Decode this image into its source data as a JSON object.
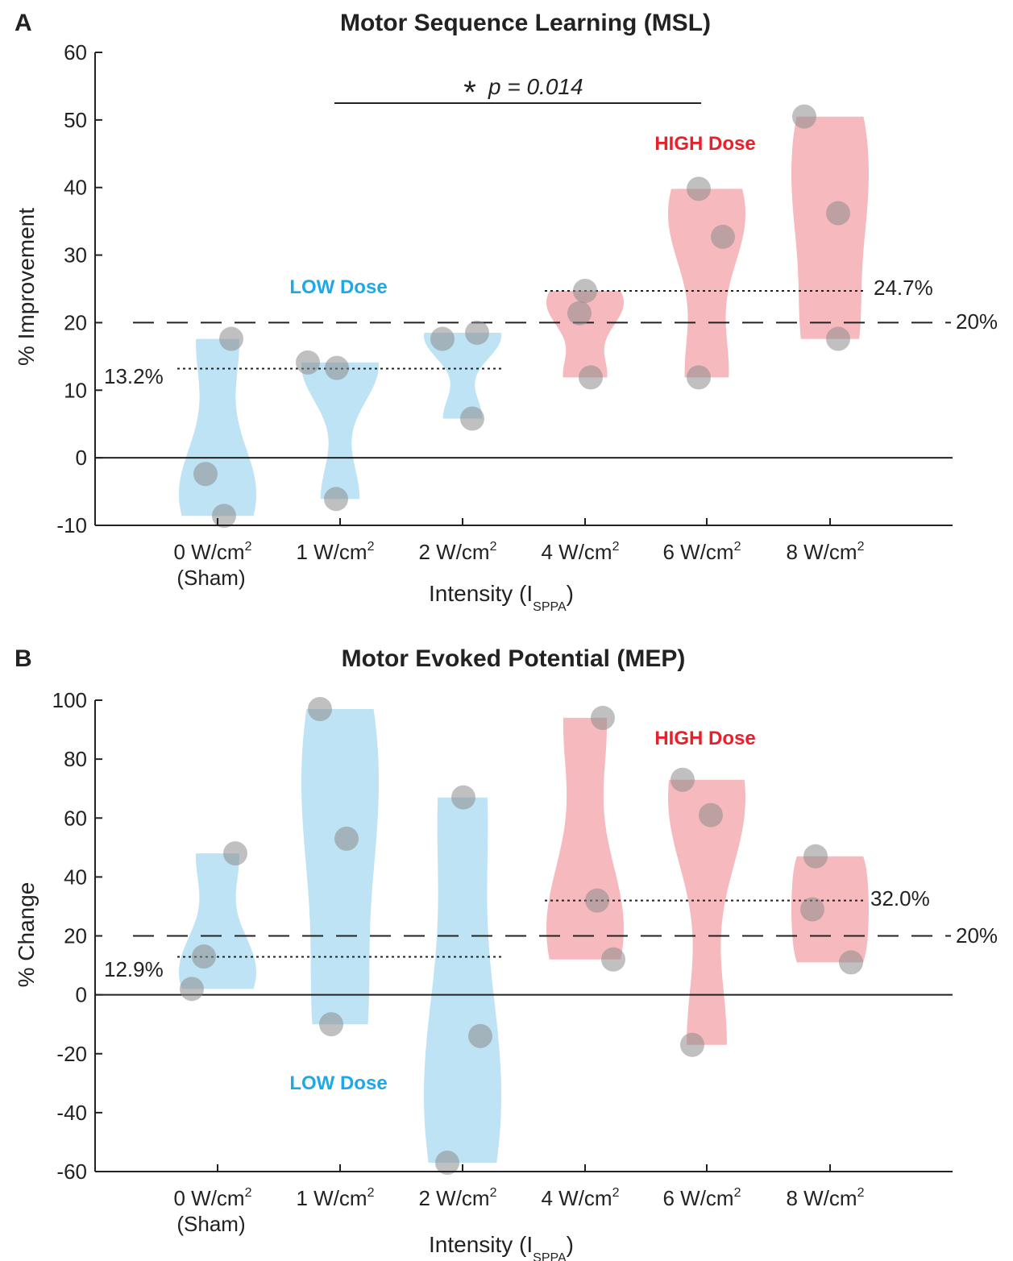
{
  "colors": {
    "low": "#bde3f4",
    "high": "#f6b9bd",
    "low_text": "#1ea9e6",
    "high_text": "#e8202a",
    "point": "#8c8c8c",
    "axis": "#222222"
  },
  "x_axis": {
    "categories": [
      {
        "label": "0 W/cm",
        "sub": "(Sham)"
      },
      {
        "label": "1 W/cm",
        "sub": ""
      },
      {
        "label": "2 W/cm",
        "sub": ""
      },
      {
        "label": "4 W/cm",
        "sub": ""
      },
      {
        "label": "6 W/cm",
        "sub": ""
      },
      {
        "label": "8 W/cm",
        "sub": ""
      }
    ],
    "superscript": "2",
    "title_main": "Intensity (I",
    "title_sub": "SPPA",
    "title_end": ")"
  },
  "panels": [
    {
      "letter": "A",
      "title": "Motor Sequence Learning (MSL)",
      "ylabel": "% Improvement",
      "low_label": "LOW Dose",
      "high_label": "HIGH Dose",
      "threshold_label": "20%",
      "low_mean_label": "13.2%",
      "high_mean_label": "24.7%",
      "sig": {
        "star": "*",
        "text": "p = 0.014"
      }
    },
    {
      "letter": "B",
      "title": "Motor Evoked Potential (MEP)",
      "ylabel": "% Change",
      "low_label": "LOW Dose",
      "high_label": "HIGH Dose",
      "threshold_label": "20%",
      "low_mean_label": "12.9%",
      "high_mean_label": "32.0%"
    }
  ],
  "chart_data": [
    {
      "type": "scatter",
      "title": "Motor Sequence Learning (MSL)",
      "xlabel": "Intensity (ISPPA)",
      "ylabel": "% Improvement",
      "ylim": [
        -10,
        60
      ],
      "yticks": [
        -10,
        0,
        10,
        20,
        30,
        40,
        50,
        60
      ],
      "categories": [
        "0 W/cm2 (Sham)",
        "1 W/cm2",
        "2 W/cm2",
        "4 W/cm2",
        "6 W/cm2",
        "8 W/cm2"
      ],
      "groups": [
        "low",
        "low",
        "low",
        "high",
        "high",
        "high"
      ],
      "points": [
        [
          17.6,
          -2.4,
          -8.6
        ],
        [
          14.1,
          13.3,
          -6.1
        ],
        [
          17.6,
          18.5,
          5.8
        ],
        [
          24.7,
          21.4,
          11.9
        ],
        [
          39.8,
          32.7,
          11.9
        ],
        [
          50.5,
          36.2,
          17.6
        ]
      ],
      "reference_lines": {
        "zero": 0,
        "threshold": 20,
        "low_mean": 13.2,
        "high_mean": 24.7
      },
      "significance": {
        "from_category": 1,
        "to_category": 4,
        "label": "* p = 0.014"
      },
      "grid": false
    },
    {
      "type": "scatter",
      "title": "Motor Evoked Potential (MEP)",
      "xlabel": "Intensity (ISPPA)",
      "ylabel": "% Change",
      "ylim": [
        -60,
        100
      ],
      "yticks": [
        -60,
        -40,
        -20,
        0,
        20,
        40,
        60,
        80,
        100
      ],
      "categories": [
        "0 W/cm2 (Sham)",
        "1 W/cm2",
        "2 W/cm2",
        "4 W/cm2",
        "6 W/cm2",
        "8 W/cm2"
      ],
      "groups": [
        "low",
        "low",
        "low",
        "high",
        "high",
        "high"
      ],
      "points": [
        [
          48,
          13,
          2
        ],
        [
          97,
          53,
          -10
        ],
        [
          67,
          -14,
          -57
        ],
        [
          94,
          32,
          12
        ],
        [
          73,
          61,
          -17
        ],
        [
          47,
          29,
          11
        ]
      ],
      "reference_lines": {
        "zero": 0,
        "threshold": 20,
        "low_mean": 12.9,
        "high_mean": 32.0
      },
      "grid": false
    }
  ]
}
